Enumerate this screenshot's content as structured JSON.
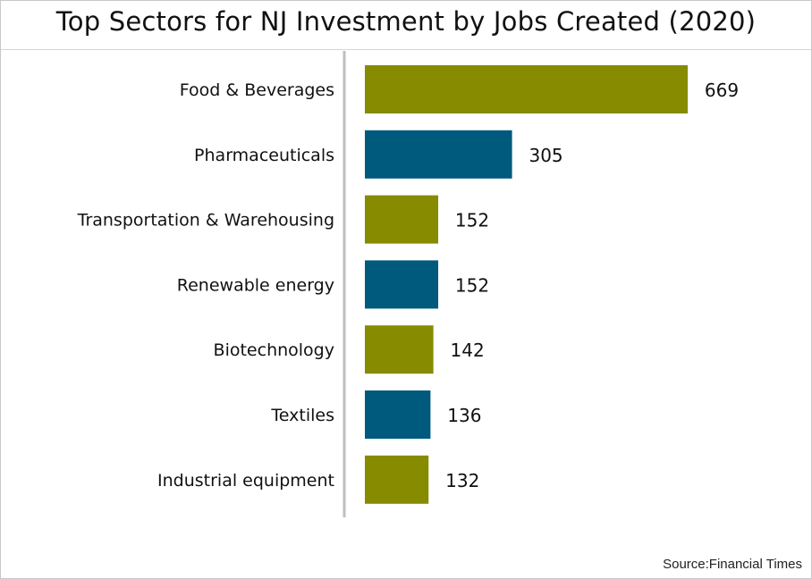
{
  "chart_data": {
    "type": "bar",
    "orientation": "horizontal",
    "title": "Top Sectors for NJ Investment by Jobs Created (2020)",
    "categories": [
      "Food & Beverages",
      "Pharmaceuticals",
      "Transportation & Warehousing",
      "Renewable energy",
      "Biotechnology",
      "Textiles",
      "Industrial equipment"
    ],
    "values": [
      669,
      305,
      152,
      152,
      142,
      136,
      132
    ],
    "bar_colors": [
      "#868b00",
      "#005a7d",
      "#868b00",
      "#005a7d",
      "#868b00",
      "#005a7d",
      "#868b00"
    ],
    "data_labels": true,
    "grid": false,
    "legend": "none"
  },
  "source": "Source:Financial Times",
  "colors": {
    "axis": "#bfbfbf",
    "text": "#111111"
  }
}
